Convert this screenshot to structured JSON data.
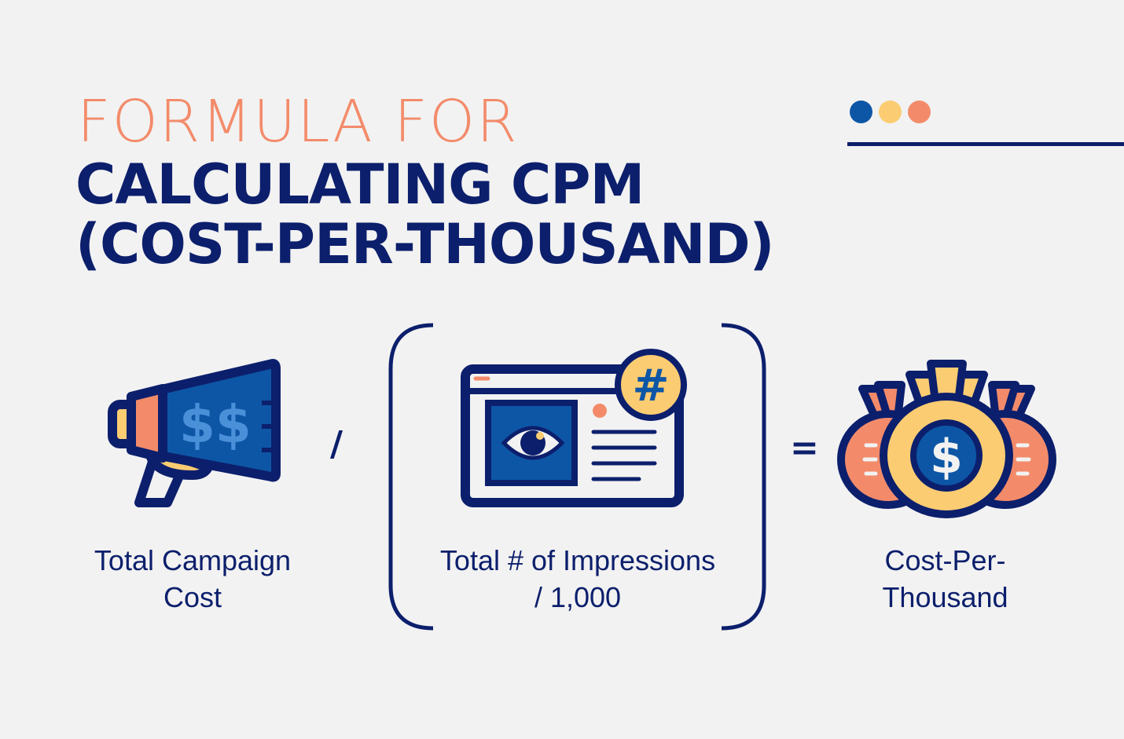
{
  "title": {
    "line1": "FORMULA FOR",
    "line2": "CALCULATING CPM",
    "line3": "(COST-PER-THOUSAND)"
  },
  "decor": {
    "dot_colors": [
      "#0d56a6",
      "#fbcc72",
      "#f38b6a"
    ]
  },
  "formula": {
    "term1": {
      "icon": "megaphone-dollar-icon",
      "label_line1": "Total Campaign",
      "label_line2": "Cost"
    },
    "divide_operator": "/",
    "term2": {
      "icon": "browser-eye-hash-icon",
      "label_line1": "Total # of Impressions",
      "label_line2": "/ 1,000"
    },
    "equals_operator": "=",
    "result": {
      "icon": "money-bags-icon",
      "label_line1": "Cost-Per-",
      "label_line2": "Thousand"
    }
  },
  "colors": {
    "navy": "#0c1f6c",
    "orange": "#f38b6a",
    "yellow": "#fbcc72",
    "blue": "#0d56a6",
    "light_blue": "#4a90d9",
    "background": "#f2f2f2"
  }
}
